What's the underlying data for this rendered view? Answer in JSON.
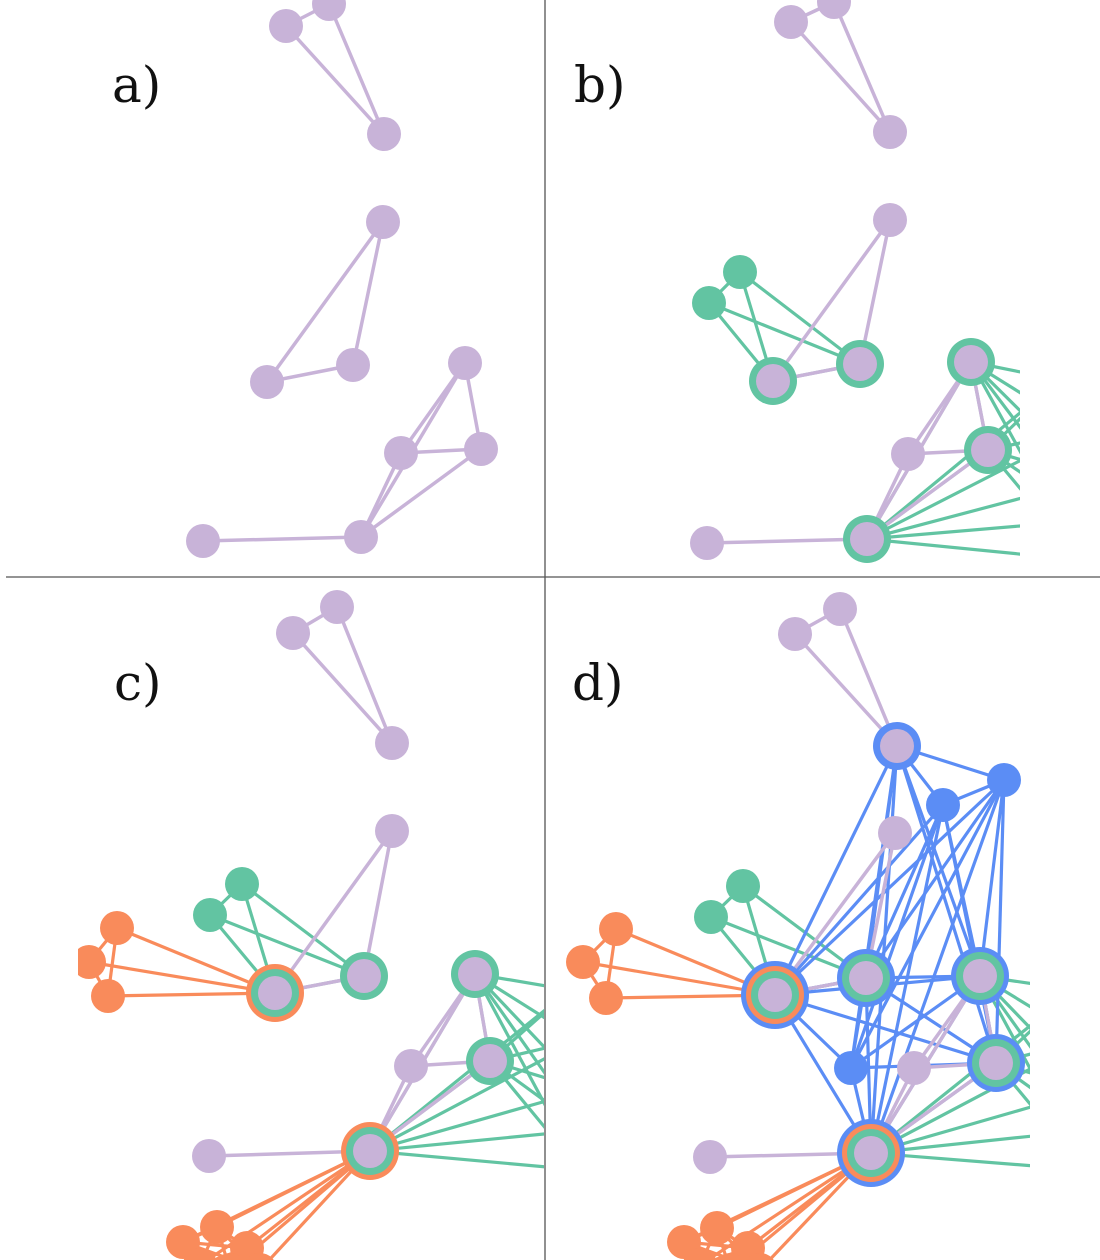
{
  "figure": {
    "panels": [
      {
        "id": "a",
        "label": "a)"
      },
      {
        "id": "b",
        "label": "b)"
      },
      {
        "id": "c",
        "label": "c)"
      },
      {
        "id": "d",
        "label": "d)"
      }
    ]
  },
  "colors": {
    "base_node": "#c8b3d8",
    "base_edge": "#c8b3d8",
    "green": "#62c4a2",
    "orange": "#f98b5b",
    "blue": "#5b8df5",
    "divider": "#555555",
    "text": "#111111"
  },
  "legend": {}
}
